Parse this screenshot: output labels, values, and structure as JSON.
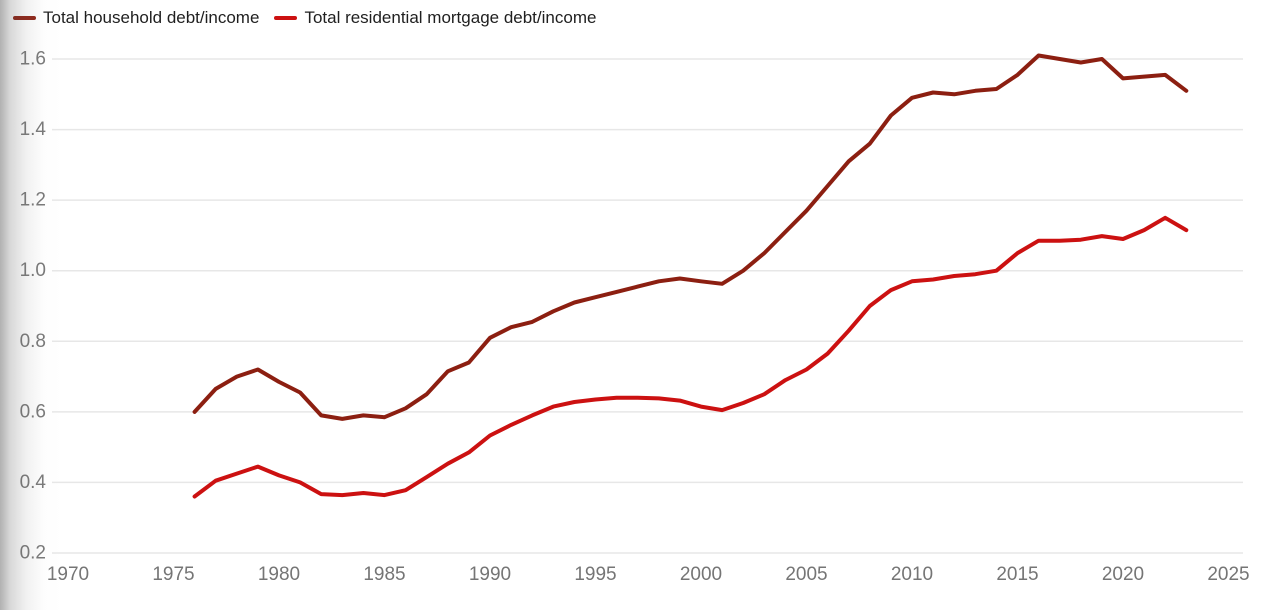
{
  "legend": {
    "items": [
      {
        "label": "Total household debt/income",
        "color": "#8c1f11"
      },
      {
        "label": "Total residential mortgage debt/income",
        "color": "#cc1111"
      }
    ]
  },
  "chart_data": {
    "type": "line",
    "title": "",
    "xlabel": "",
    "ylabel": "",
    "x": [
      1976,
      1977,
      1978,
      1979,
      1980,
      1981,
      1982,
      1983,
      1984,
      1985,
      1986,
      1987,
      1988,
      1989,
      1990,
      1991,
      1992,
      1993,
      1994,
      1995,
      1996,
      1997,
      1998,
      1999,
      2000,
      2001,
      2002,
      2003,
      2004,
      2005,
      2006,
      2007,
      2008,
      2009,
      2010,
      2011,
      2012,
      2013,
      2014,
      2015,
      2016,
      2017,
      2018,
      2019,
      2020,
      2021,
      2022,
      2023
    ],
    "series": [
      {
        "name": "Total household debt/income",
        "color": "#8c1f11",
        "values": [
          0.6,
          0.665,
          0.7,
          0.72,
          0.685,
          0.655,
          0.59,
          0.58,
          0.59,
          0.585,
          0.61,
          0.65,
          0.715,
          0.74,
          0.81,
          0.84,
          0.855,
          0.885,
          0.91,
          0.925,
          0.94,
          0.955,
          0.97,
          0.978,
          0.97,
          0.963,
          1.0,
          1.05,
          1.11,
          1.17,
          1.24,
          1.31,
          1.36,
          1.44,
          1.49,
          1.505,
          1.5,
          1.51,
          1.515,
          1.555,
          1.61,
          1.6,
          1.59,
          1.6,
          1.545,
          1.55,
          1.555,
          1.51
        ]
      },
      {
        "name": "Total residential mortgage debt/income",
        "color": "#cc1111",
        "values": [
          0.36,
          0.405,
          0.425,
          0.445,
          0.42,
          0.4,
          0.367,
          0.364,
          0.37,
          0.364,
          0.378,
          0.415,
          0.453,
          0.485,
          0.533,
          0.563,
          0.59,
          0.615,
          0.628,
          0.635,
          0.64,
          0.64,
          0.638,
          0.632,
          0.615,
          0.605,
          0.625,
          0.65,
          0.69,
          0.72,
          0.765,
          0.83,
          0.9,
          0.945,
          0.97,
          0.975,
          0.985,
          0.99,
          1.0,
          1.05,
          1.085,
          1.085,
          1.088,
          1.098,
          1.09,
          1.115,
          1.15,
          1.115
        ]
      }
    ],
    "x_ticks": [
      1970,
      1975,
      1980,
      1985,
      1990,
      1995,
      2000,
      2005,
      2010,
      2015,
      2020,
      2025
    ],
    "y_ticks": [
      0.2,
      0.4,
      0.6,
      0.8,
      1.0,
      1.2,
      1.4,
      1.6
    ],
    "ylim": [
      0.2,
      1.6
    ],
    "xlim": [
      1969.2,
      2025.8
    ],
    "grid": "horizontal",
    "legend_position": "top-left",
    "grid_color": "#e7e7e7",
    "tick_label_color": "#757575",
    "background": "#ffffff",
    "line_width": 4
  }
}
